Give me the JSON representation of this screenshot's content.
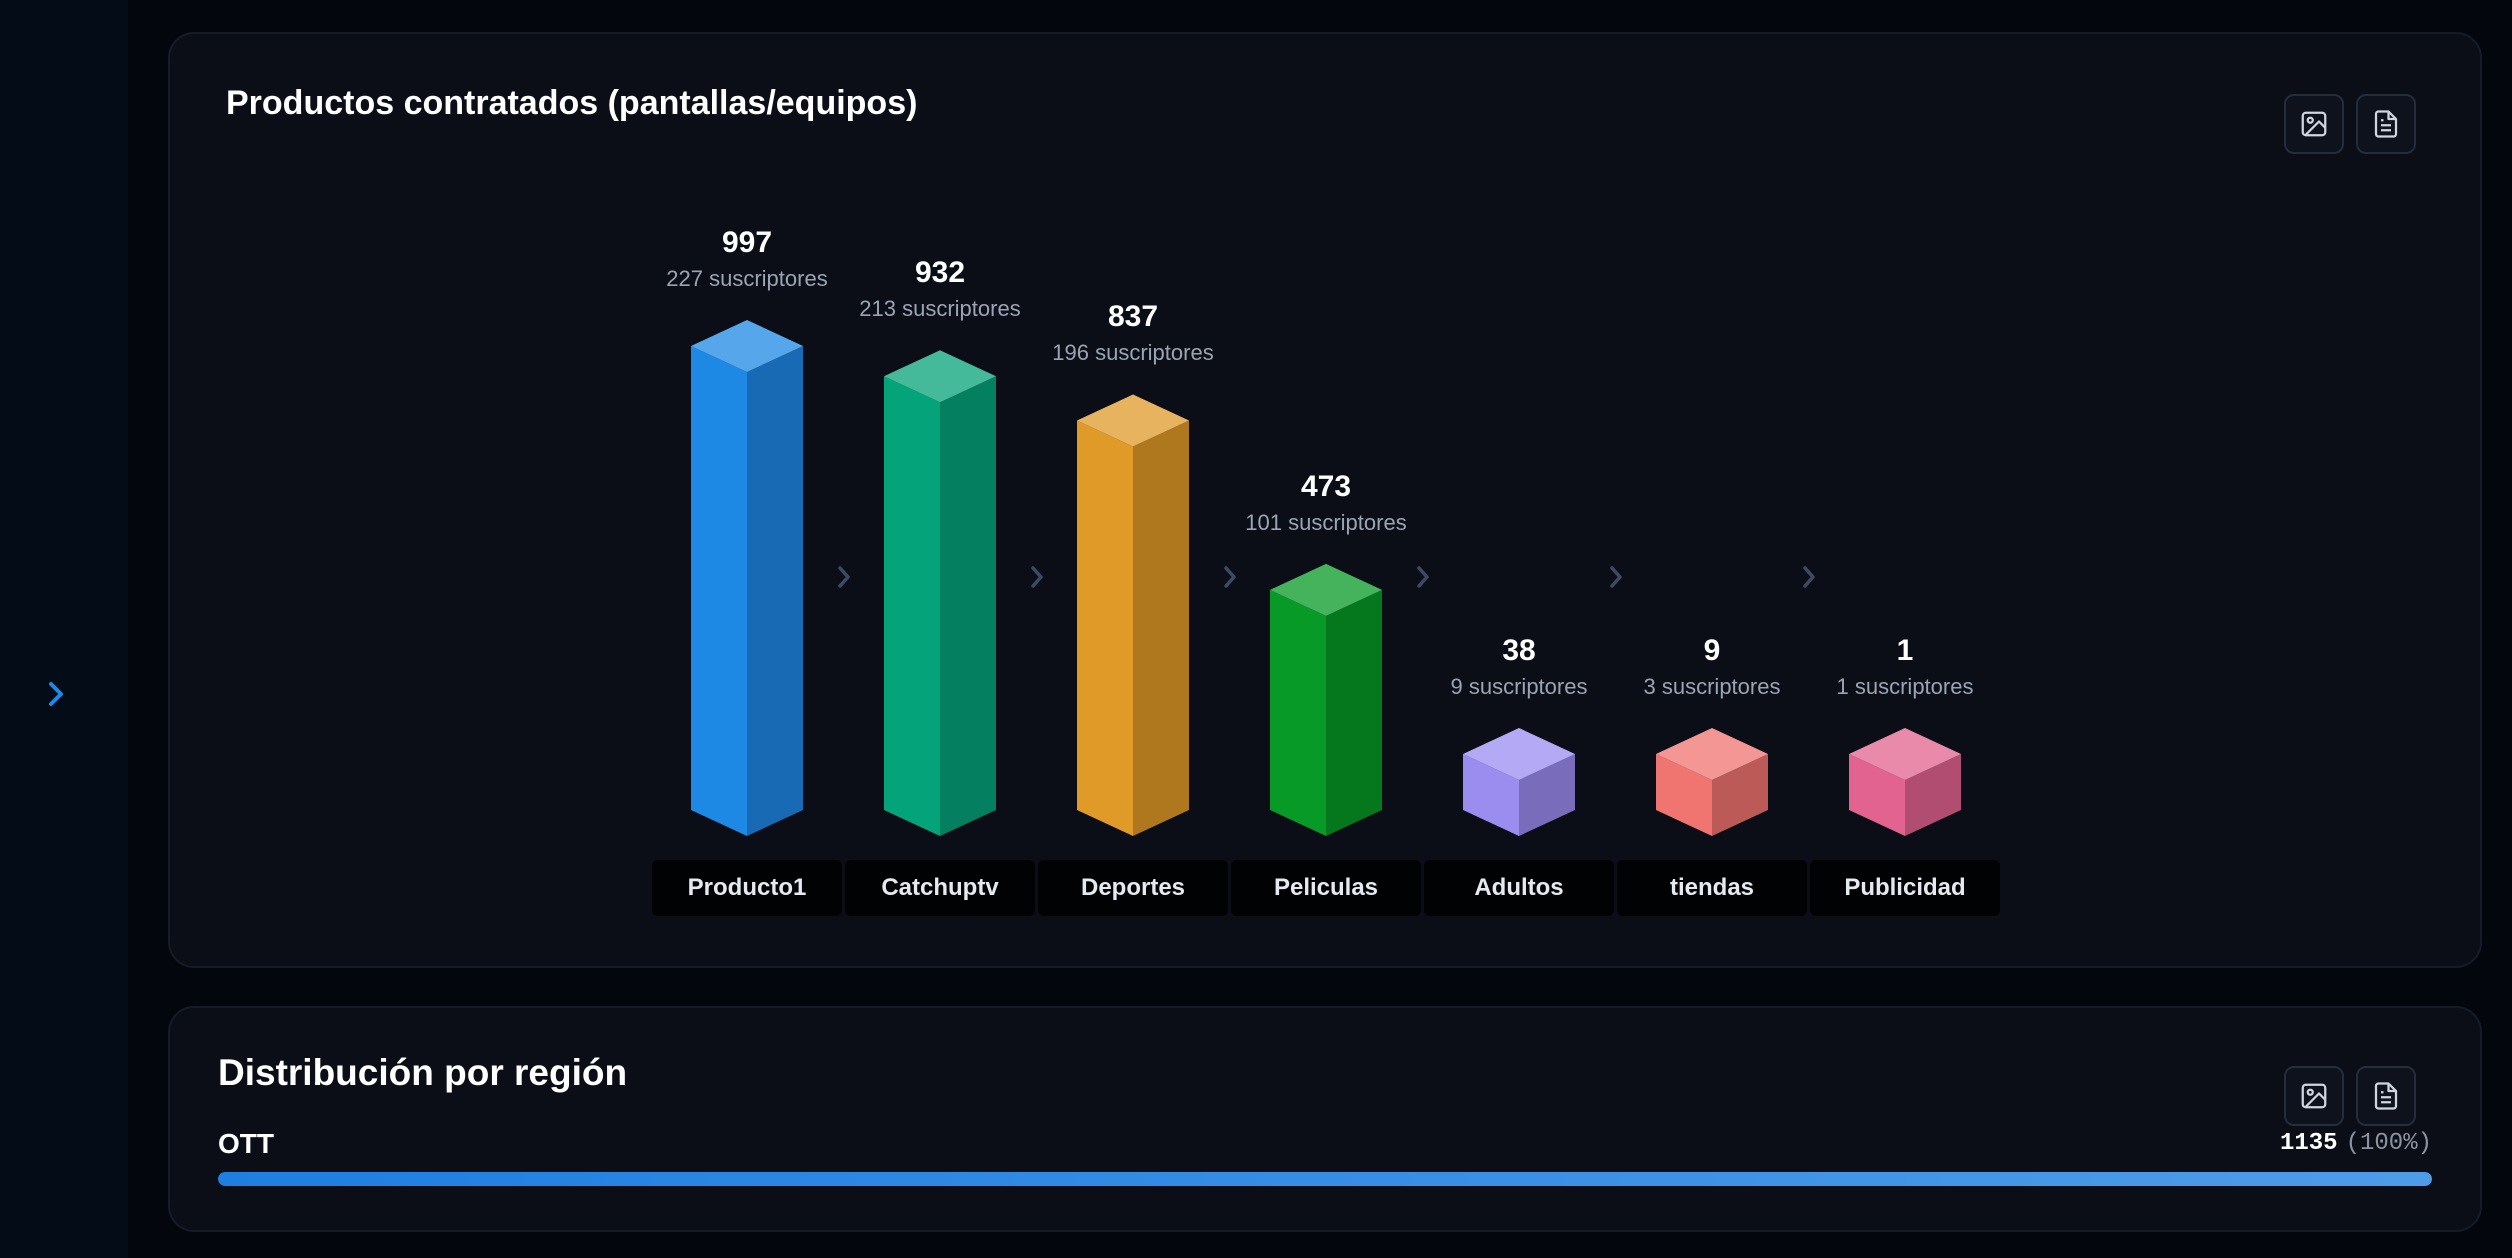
{
  "products_card": {
    "title": "Productos contratados (pantallas/equipos)",
    "actions": [
      {
        "icon": "image-icon",
        "label": ""
      },
      {
        "icon": "document-icon",
        "label": ""
      }
    ]
  },
  "chart_data": {
    "type": "bar",
    "title": "Productos contratados (pantallas/equipos)",
    "categories": [
      "Producto1",
      "Catchuptv",
      "Deportes",
      "Peliculas",
      "Adultos",
      "tiendas",
      "Publicidad"
    ],
    "values": [
      997,
      932,
      837,
      473,
      38,
      9,
      1
    ],
    "subscribers": [
      "227 suscriptores",
      "213 suscriptores",
      "196 suscriptores",
      "101 suscriptores",
      "9 suscriptores",
      "3 suscriptores",
      "1 suscriptores"
    ],
    "colors": [
      "#1e88e5",
      "#05a37a",
      "#e09a28",
      "#079a26",
      "#9b8cf0",
      "#f07470",
      "#e2638f"
    ],
    "xlabel": "",
    "ylabel": "",
    "grid": false,
    "legend": "none"
  },
  "region_card": {
    "title": "Distribución por región",
    "rows": [
      {
        "label": "OTT",
        "count": "1135",
        "percent": "(100%)",
        "fraction": 1.0
      }
    ]
  }
}
